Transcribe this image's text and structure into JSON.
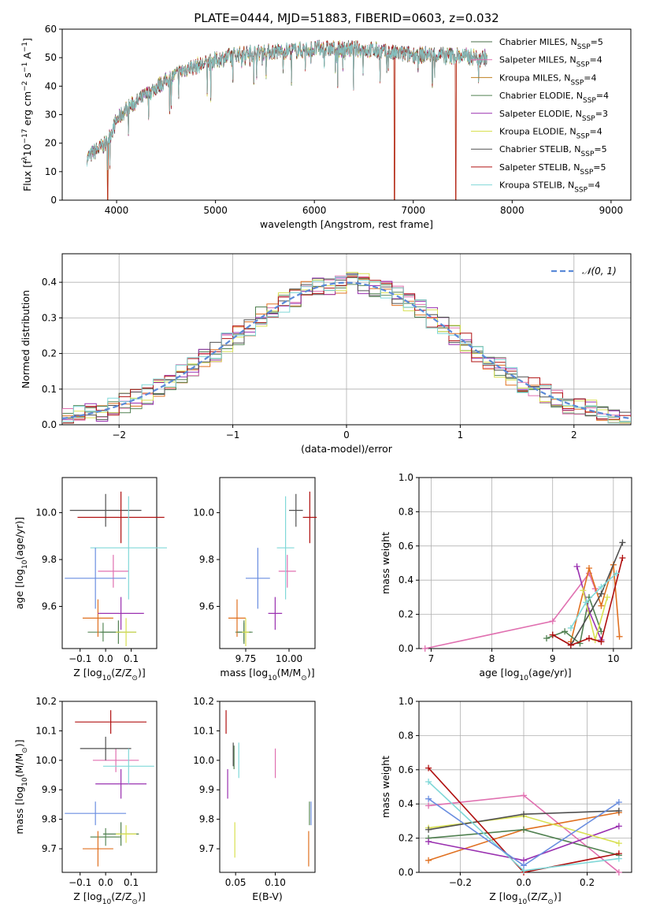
{
  "colors": [
    "#4a6d4a",
    "#e070b0",
    "#c08020",
    "#508050",
    "#9a30b0",
    "#d8e050",
    "#505050",
    "#b01010",
    "#80d8d8"
  ],
  "hist_colors": [
    "#5a8a5a",
    "#e070b0",
    "#e07020",
    "#508050",
    "#9a30b0",
    "#d8e050",
    "#505050",
    "#b01010",
    "#80d8d8",
    "#6a8ee0"
  ],
  "chart_data": [
    {
      "id": "spectrum",
      "type": "line",
      "title": "PLATE=0444, MJD=51883, FIBERID=0603, z=0.032",
      "xlabel": "wavelength [Angstrom, rest frame]",
      "ylabel_parts": [
        "Flux [f",
        "λ",
        "10",
        "−17",
        " erg cm",
        "−2",
        " s",
        "−1",
        " A",
        "−1",
        "]"
      ],
      "xlim": [
        3450,
        9200
      ],
      "ylim": [
        0,
        60
      ],
      "xticks": [
        4000,
        5000,
        6000,
        7000,
        8000,
        9000
      ],
      "yticks": [
        0,
        10,
        20,
        30,
        40,
        50,
        60
      ],
      "grid": false,
      "legend_position": "right",
      "legend": [
        {
          "label": "Chabrier MILES, N",
          "sub": "SSP",
          "tail": "=5"
        },
        {
          "label": "Salpeter MILES, N",
          "sub": "SSP",
          "tail": "=4"
        },
        {
          "label": "Kroupa MILES, N",
          "sub": "SSP",
          "tail": "=4"
        },
        {
          "label": "Chabrier ELODIE, N",
          "sub": "SSP",
          "tail": "=4"
        },
        {
          "label": "Salpeter ELODIE, N",
          "sub": "SSP",
          "tail": "=3"
        },
        {
          "label": "Kroupa ELODIE, N",
          "sub": "SSP",
          "tail": "=4"
        },
        {
          "label": "Chabrier STELIB, N",
          "sub": "SSP",
          "tail": "=5"
        },
        {
          "label": "Salpeter STELIB, N",
          "sub": "SSP",
          "tail": "=5"
        },
        {
          "label": "Kroupa STELIB, N",
          "sub": "SSP",
          "tail": "=4"
        }
      ],
      "continuum": {
        "x": [
          3700,
          3900,
          4000,
          4100,
          4300,
          4500,
          4700,
          5000,
          5200,
          5500,
          5800,
          6000,
          6300,
          6500,
          6800,
          7000,
          7200,
          7500,
          7750
        ],
        "y": [
          15,
          20,
          28,
          32,
          37,
          42,
          46,
          49,
          51,
          52,
          52.5,
          53,
          53,
          53,
          51.5,
          51,
          51,
          50.5,
          50
        ]
      },
      "dips": [
        {
          "x": 3910,
          "y": 0
        },
        {
          "x": 6810,
          "y": 0
        },
        {
          "x": 7430,
          "y": 0
        }
      ]
    },
    {
      "id": "residuals",
      "type": "histogram",
      "xlabel": "(data-model)/error",
      "ylabel": "Normed distribution",
      "xlim": [
        -2.5,
        2.5
      ],
      "ylim": [
        0,
        0.48
      ],
      "xticks": [
        -2,
        -1,
        0,
        1,
        2
      ],
      "yticks": [
        0,
        0.1,
        0.2,
        0.3,
        0.4
      ],
      "grid": true,
      "legend_label": "𝒩(0, 1)",
      "legend_position": "top-right",
      "bin_width": 0.1
    },
    {
      "id": "age-vs-Z",
      "type": "scatter",
      "xlabel_parts": [
        "Z [log",
        "10",
        "(Z/Z",
        "⊙",
        ")]"
      ],
      "ylabel_parts": [
        "age  [log",
        "10",
        "(age/yr)]"
      ],
      "xlim": [
        -0.17,
        0.2
      ],
      "ylim": [
        9.42,
        10.15
      ],
      "xticks": [
        -0.1,
        0.0,
        0.1
      ],
      "yticks": [
        9.6,
        9.8,
        10.0
      ],
      "points": [
        {
          "x": -0.01,
          "y": 9.49,
          "xerr": 0.06,
          "yerr": 0.04
        },
        {
          "x": 0.03,
          "y": 9.75,
          "xerr": 0.06,
          "yerr": 0.07
        },
        {
          "x": -0.03,
          "y": 9.55,
          "xerr": 0.06,
          "yerr": 0.08
        },
        {
          "x": 0.05,
          "y": 9.49,
          "xerr": 0.07,
          "yerr": 0.05
        },
        {
          "x": 0.06,
          "y": 9.57,
          "xerr": 0.09,
          "yerr": 0.07
        },
        {
          "x": 0.08,
          "y": 9.49,
          "xerr": 0.04,
          "yerr": 0.06
        },
        {
          "x": 0.0,
          "y": 10.01,
          "xerr": 0.14,
          "yerr": 0.07
        },
        {
          "x": 0.06,
          "y": 9.98,
          "xerr": 0.17,
          "yerr": 0.11
        },
        {
          "x": 0.09,
          "y": 9.85,
          "xerr": 0.15,
          "yerr": 0.22
        },
        {
          "x": -0.04,
          "y": 9.72,
          "xerr": 0.12,
          "yerr": 0.13
        }
      ]
    },
    {
      "id": "age-vs-mass",
      "type": "scatter",
      "xlabel_parts": [
        "mass [log",
        "10",
        "(M/M",
        "⊙",
        ")]"
      ],
      "ylabel_parts": [],
      "xlim": [
        9.6,
        10.15
      ],
      "ylim": [
        9.42,
        10.15
      ],
      "xticks": [
        9.75,
        10.0
      ],
      "yticks": [
        9.6,
        9.8,
        10.0
      ],
      "points": [
        {
          "x": 9.74,
          "y": 9.49,
          "xerr": 0.05,
          "yerr": 0.04
        },
        {
          "x": 9.99,
          "y": 9.75,
          "xerr": 0.05,
          "yerr": 0.07
        },
        {
          "x": 9.7,
          "y": 9.55,
          "xerr": 0.05,
          "yerr": 0.08
        },
        {
          "x": 9.74,
          "y": 9.49,
          "xerr": 0.04,
          "yerr": 0.05
        },
        {
          "x": 9.92,
          "y": 9.57,
          "xerr": 0.04,
          "yerr": 0.07
        },
        {
          "x": 9.75,
          "y": 9.49,
          "xerr": 0.02,
          "yerr": 0.06
        },
        {
          "x": 10.04,
          "y": 10.01,
          "xerr": 0.04,
          "yerr": 0.07
        },
        {
          "x": 10.12,
          "y": 9.98,
          "xerr": 0.04,
          "yerr": 0.11
        },
        {
          "x": 9.98,
          "y": 9.85,
          "xerr": 0.05,
          "yerr": 0.22
        },
        {
          "x": 9.82,
          "y": 9.72,
          "xerr": 0.07,
          "yerr": 0.13
        }
      ]
    },
    {
      "id": "weight-vs-age",
      "type": "line",
      "xlabel_parts": [
        "age  [log",
        "10",
        "(age/yr)]"
      ],
      "ylabel": "mass weight",
      "xlim": [
        6.8,
        10.3
      ],
      "ylim": [
        0,
        1.0
      ],
      "xticks": [
        7,
        8,
        9,
        10
      ],
      "yticks": [
        0.0,
        0.2,
        0.4,
        0.6,
        0.8,
        1.0
      ],
      "grid": true,
      "series": [
        {
          "x": [
            6.9,
            9.0,
            9.6,
            9.7
          ],
          "y": [
            0.0,
            0.16,
            0.44,
            0.35
          ]
        },
        {
          "x": [
            9.3,
            9.6,
            9.8,
            10.0,
            10.1
          ],
          "y": [
            0.04,
            0.47,
            0.25,
            0.49,
            0.07
          ]
        },
        {
          "x": [
            8.9,
            9.2,
            9.45,
            9.6,
            9.8
          ],
          "y": [
            0.06,
            0.1,
            0.03,
            0.3,
            0.1
          ]
        },
        {
          "x": [
            9.4,
            9.6,
            9.8
          ],
          "y": [
            0.48,
            0.22,
            0.05
          ]
        },
        {
          "x": [
            9.5,
            9.7,
            9.9
          ],
          "y": [
            0.34,
            0.05,
            0.3
          ]
        },
        {
          "x": [
            9.0,
            9.3,
            9.8,
            10.15
          ],
          "y": [
            0.08,
            0.02,
            0.32,
            0.62
          ]
        },
        {
          "x": [
            9.0,
            9.3,
            9.6,
            9.8,
            10.15
          ],
          "y": [
            0.08,
            0.02,
            0.06,
            0.04,
            0.53
          ]
        },
        {
          "x": [
            9.3,
            9.55,
            9.8,
            10.05
          ],
          "y": [
            0.12,
            0.27,
            0.36,
            0.44
          ]
        }
      ]
    },
    {
      "id": "mass-vs-Z",
      "type": "scatter",
      "xlabel_parts": [
        "Z [log",
        "10",
        "(Z/Z",
        "⊙",
        ")]"
      ],
      "ylabel_parts": [
        "mass [log",
        "10",
        "(M/M",
        "⊙",
        ")]"
      ],
      "xlim": [
        -0.17,
        0.2
      ],
      "ylim": [
        9.62,
        10.2
      ],
      "xticks": [
        -0.1,
        0.0,
        0.1
      ],
      "yticks": [
        9.7,
        9.8,
        9.9,
        10.0,
        10.1,
        10.2
      ],
      "points": [
        {
          "x": 0.0,
          "y": 9.74,
          "xerr": 0.06,
          "yerr": 0.03
        },
        {
          "x": 0.04,
          "y": 10.0,
          "xerr": 0.09,
          "yerr": 0.04
        },
        {
          "x": -0.03,
          "y": 9.7,
          "xerr": 0.06,
          "yerr": 0.06
        },
        {
          "x": 0.06,
          "y": 9.75,
          "xerr": 0.07,
          "yerr": 0.04
        },
        {
          "x": 0.06,
          "y": 9.92,
          "xerr": 0.1,
          "yerr": 0.05
        },
        {
          "x": 0.08,
          "y": 9.75,
          "xerr": 0.04,
          "yerr": 0.03
        },
        {
          "x": 0.0,
          "y": 10.04,
          "xerr": 0.1,
          "yerr": 0.04
        },
        {
          "x": 0.02,
          "y": 10.13,
          "xerr": 0.14,
          "yerr": 0.04
        },
        {
          "x": 0.09,
          "y": 9.98,
          "xerr": 0.1,
          "yerr": 0.06
        },
        {
          "x": -0.04,
          "y": 9.82,
          "xerr": 0.12,
          "yerr": 0.04
        }
      ]
    },
    {
      "id": "mass-vs-EBV",
      "type": "scatter",
      "xlabel": "E(B-V)",
      "ylabel_parts": [],
      "xlim": [
        0.03,
        0.15
      ],
      "ylim": [
        9.62,
        10.2
      ],
      "xticks": [
        0.05,
        0.1
      ],
      "yticks": [
        9.7,
        9.8,
        9.9,
        10.0,
        10.1,
        10.2
      ],
      "points": [
        {
          "x": 0.143,
          "y": 9.82,
          "xerr": 0,
          "yerr": 0.04
        },
        {
          "x": 0.1,
          "y": 9.99,
          "xerr": 0,
          "yerr": 0.05
        },
        {
          "x": 0.142,
          "y": 9.7,
          "xerr": 0,
          "yerr": 0.06
        },
        {
          "x": 0.048,
          "y": 10.01,
          "xerr": 0,
          "yerr": 0.04
        },
        {
          "x": 0.04,
          "y": 9.92,
          "xerr": 0,
          "yerr": 0.05
        },
        {
          "x": 0.049,
          "y": 9.73,
          "xerr": 0,
          "yerr": 0.06
        },
        {
          "x": 0.047,
          "y": 10.02,
          "xerr": 0,
          "yerr": 0.04
        },
        {
          "x": 0.038,
          "y": 10.13,
          "xerr": 0,
          "yerr": 0.04
        },
        {
          "x": 0.054,
          "y": 10.0,
          "xerr": 0,
          "yerr": 0.06
        },
        {
          "x": 0.145,
          "y": 9.82,
          "xerr": 0,
          "yerr": 0.04
        }
      ]
    },
    {
      "id": "weight-vs-Z",
      "type": "line",
      "xlabel_parts": [
        "Z [log",
        "10",
        "(Z/Z",
        "⊙",
        ")]"
      ],
      "ylabel": "mass weight",
      "xlim": [
        -0.33,
        0.34
      ],
      "ylim": [
        0,
        1.0
      ],
      "xticks": [
        -0.2,
        0.0,
        0.2
      ],
      "yticks": [
        0.0,
        0.2,
        0.4,
        0.6,
        0.8,
        1.0
      ],
      "grid": true,
      "series": [
        {
          "x": [
            -0.3,
            0.0,
            0.3
          ],
          "y": [
            0.39,
            0.45,
            0.0
          ]
        },
        {
          "x": [
            -0.3,
            0.0,
            0.3
          ],
          "y": [
            0.07,
            0.25,
            0.35
          ]
        },
        {
          "x": [
            -0.3,
            0.0,
            0.3
          ],
          "y": [
            0.2,
            0.25,
            0.1
          ]
        },
        {
          "x": [
            -0.3,
            0.0,
            0.3
          ],
          "y": [
            0.18,
            0.07,
            0.27
          ]
        },
        {
          "x": [
            -0.3,
            0.0,
            0.3
          ],
          "y": [
            0.26,
            0.33,
            0.17
          ]
        },
        {
          "x": [
            -0.3,
            0.0,
            0.3
          ],
          "y": [
            0.25,
            0.34,
            0.36
          ]
        },
        {
          "x": [
            -0.3,
            0.0,
            0.3
          ],
          "y": [
            0.61,
            0.0,
            0.11
          ]
        },
        {
          "x": [
            -0.3,
            0.0,
            0.3
          ],
          "y": [
            0.53,
            0.01,
            0.08
          ]
        },
        {
          "x": [
            -0.3,
            0.0,
            0.3
          ],
          "y": [
            0.43,
            0.04,
            0.41
          ]
        }
      ]
    }
  ]
}
